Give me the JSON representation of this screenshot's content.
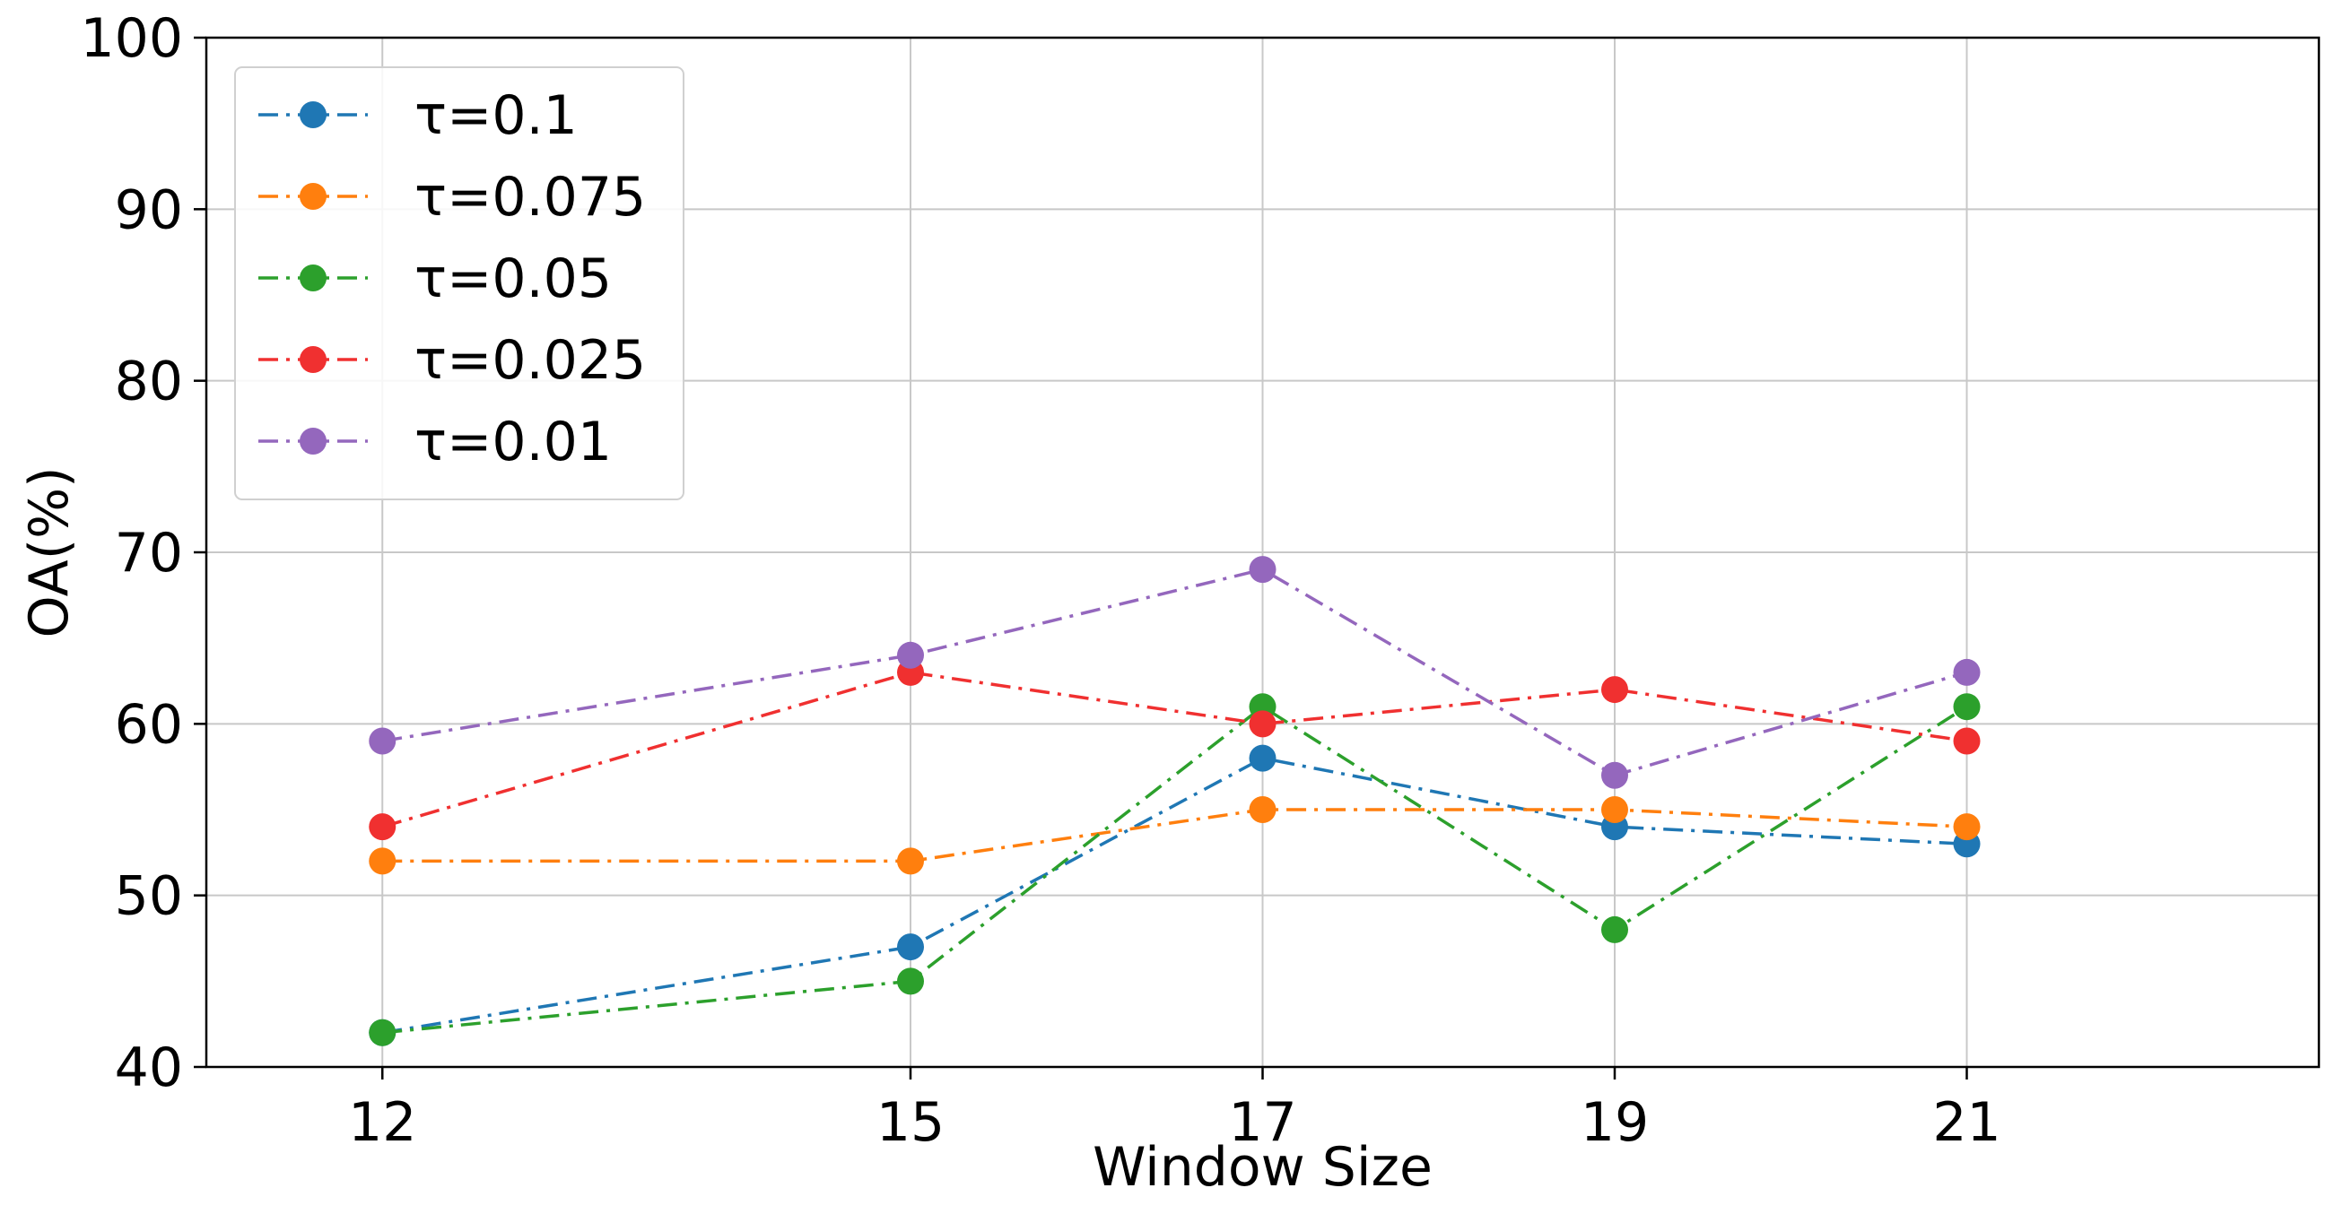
{
  "chart_data": {
    "type": "line",
    "title": "",
    "xlabel": "Window Size",
    "ylabel": "OA(%)",
    "categories": [
      "12",
      "15",
      "17",
      "19",
      "21"
    ],
    "xlim": [
      11,
      23
    ],
    "ylim": [
      40,
      100
    ],
    "yticks": [
      "40",
      "50",
      "60",
      "70",
      "80",
      "90",
      "100"
    ],
    "grid": true,
    "legend_position": "top-left",
    "line_style": "dash-dot",
    "marker": "circle",
    "series": [
      {
        "name": "τ=0.1",
        "color": "#1f77b4",
        "values": [
          42,
          47,
          58,
          54,
          53
        ]
      },
      {
        "name": "τ=0.075",
        "color": "#ff7f0e",
        "values": [
          52,
          52,
          55,
          55,
          54
        ]
      },
      {
        "name": "τ=0.05",
        "color": "#2ca02c",
        "values": [
          42,
          45,
          61,
          48,
          61
        ]
      },
      {
        "name": "τ=0.025",
        "color": "#f03030",
        "values": [
          54,
          63,
          60,
          62,
          59
        ]
      },
      {
        "name": "τ=0.01",
        "color": "#9467bd",
        "values": [
          59,
          64,
          69,
          57,
          63
        ]
      }
    ]
  }
}
